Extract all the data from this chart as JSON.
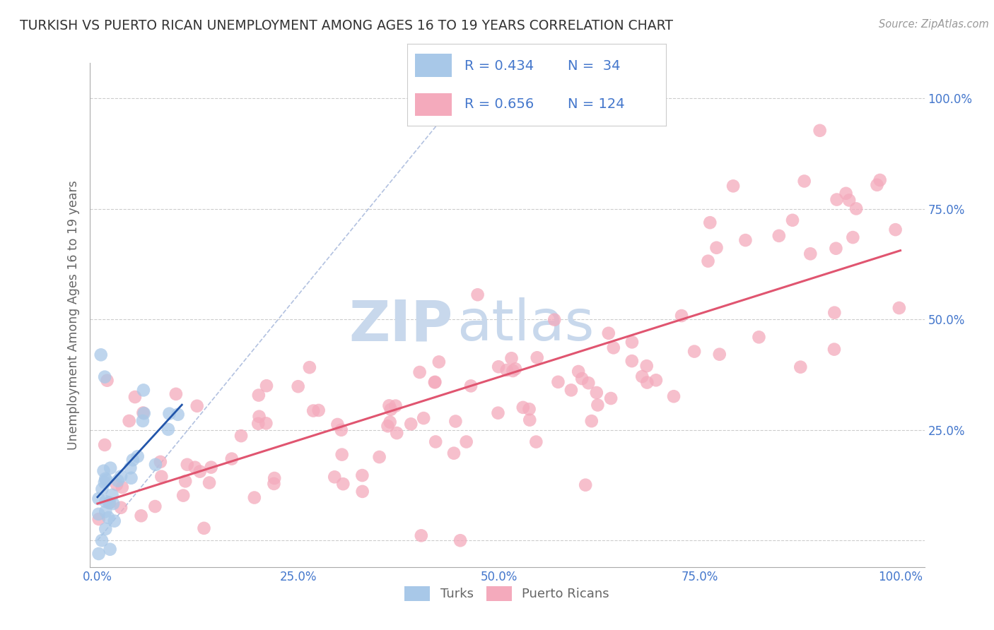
{
  "title": "TURKISH VS PUERTO RICAN UNEMPLOYMENT AMONG AGES 16 TO 19 YEARS CORRELATION CHART",
  "source": "Source: ZipAtlas.com",
  "ylabel": "Unemployment Among Ages 16 to 19 years",
  "turks_R": 0.434,
  "turks_N": 34,
  "puertoricans_R": 0.656,
  "puertoricans_N": 124,
  "turks_color": "#A8C8E8",
  "puertoricans_color": "#F4AABC",
  "turks_line_color": "#2255AA",
  "puertoricans_line_color": "#E05570",
  "ref_line_color": "#AABBDD",
  "watermark_zip": "ZIP",
  "watermark_atlas": "atlas",
  "watermark_color": "#C8D8EC",
  "title_color": "#333333",
  "axis_label_color": "#666666",
  "tick_label_color": "#4477CC",
  "background_color": "#FFFFFF",
  "grid_color": "#CCCCCC",
  "legend_border_color": "#CCCCCC"
}
